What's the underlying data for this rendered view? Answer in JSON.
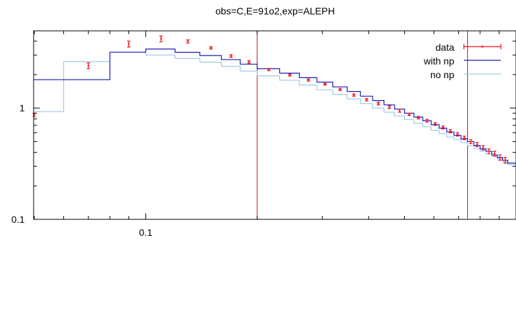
{
  "chart_data": {
    "type": "line",
    "title": "obs=C,E=91o2,exp=ALEPH",
    "xlabel": "",
    "ylabel": "",
    "x_scale": "log",
    "y_scale": "log",
    "xlim": [
      0.0498,
      1.0
    ],
    "ylim": [
      0.1,
      4.95
    ],
    "x_tick_labels": [
      {
        "value": 0.1,
        "label": "0.1"
      }
    ],
    "y_tick_labels": [
      {
        "value": 1,
        "label": "1"
      },
      {
        "value": 0.1,
        "label": "0.1"
      }
    ],
    "vertical_lines": [
      0.2,
      0.74
    ],
    "legend_position": "top-right",
    "colors": {
      "data": "#e8101a",
      "with_np": "#1818b8",
      "no_np": "#9ccce6",
      "vlines": "#b01818"
    },
    "series": [
      {
        "name": "data",
        "style": "points-with-errorbars",
        "points": [
          {
            "x": 0.05,
            "y": 0.87,
            "err": 0.03
          },
          {
            "x": 0.07,
            "y": 2.41,
            "err": 0.14
          },
          {
            "x": 0.09,
            "y": 3.77,
            "err": 0.23
          },
          {
            "x": 0.11,
            "y": 4.2,
            "err": 0.25
          },
          {
            "x": 0.13,
            "y": 3.98,
            "err": 0.13
          },
          {
            "x": 0.15,
            "y": 3.48,
            "err": 0.08
          },
          {
            "x": 0.17,
            "y": 2.94,
            "err": 0.08
          },
          {
            "x": 0.19,
            "y": 2.6,
            "err": 0.07
          },
          {
            "x": 0.215,
            "y": 2.22,
            "err": 0.05
          },
          {
            "x": 0.245,
            "y": 1.98,
            "err": 0.04
          },
          {
            "x": 0.275,
            "y": 1.79,
            "err": 0.04
          },
          {
            "x": 0.305,
            "y": 1.64,
            "err": 0.03
          },
          {
            "x": 0.335,
            "y": 1.47,
            "err": 0.03
          },
          {
            "x": 0.365,
            "y": 1.31,
            "err": 0.03
          },
          {
            "x": 0.395,
            "y": 1.19,
            "err": 0.03
          },
          {
            "x": 0.425,
            "y": 1.1,
            "err": 0.03
          },
          {
            "x": 0.455,
            "y": 1.02,
            "err": 0.03
          },
          {
            "x": 0.485,
            "y": 0.95,
            "err": 0.03
          },
          {
            "x": 0.515,
            "y": 0.88,
            "err": 0.02
          },
          {
            "x": 0.545,
            "y": 0.82,
            "err": 0.02
          },
          {
            "x": 0.575,
            "y": 0.77,
            "err": 0.02
          },
          {
            "x": 0.605,
            "y": 0.72,
            "err": 0.02
          },
          {
            "x": 0.635,
            "y": 0.67,
            "err": 0.02
          },
          {
            "x": 0.665,
            "y": 0.62,
            "err": 0.02
          },
          {
            "x": 0.695,
            "y": 0.58,
            "err": 0.02
          },
          {
            "x": 0.725,
            "y": 0.54,
            "err": 0.02
          },
          {
            "x": 0.755,
            "y": 0.5,
            "err": 0.02
          },
          {
            "x": 0.785,
            "y": 0.47,
            "err": 0.02
          },
          {
            "x": 0.815,
            "y": 0.44,
            "err": 0.02
          },
          {
            "x": 0.845,
            "y": 0.41,
            "err": 0.02
          },
          {
            "x": 0.875,
            "y": 0.39,
            "err": 0.02
          },
          {
            "x": 0.905,
            "y": 0.36,
            "err": 0.02
          },
          {
            "x": 0.935,
            "y": 0.34,
            "err": 0.02
          }
        ]
      },
      {
        "name": "with np",
        "style": "step",
        "edges": [
          0.0498,
          0.06,
          0.08,
          0.1,
          0.12,
          0.14,
          0.16,
          0.18,
          0.2,
          0.23,
          0.26,
          0.29,
          0.32,
          0.35,
          0.38,
          0.41,
          0.44,
          0.47,
          0.5,
          0.53,
          0.56,
          0.59,
          0.62,
          0.65,
          0.68,
          0.71,
          0.74,
          0.77,
          0.8,
          0.83,
          0.86,
          0.89,
          0.92,
          0.95,
          1.0
        ],
        "values": [
          1.8,
          1.8,
          3.18,
          3.4,
          3.17,
          2.97,
          2.73,
          2.48,
          2.26,
          2.06,
          1.88,
          1.71,
          1.55,
          1.41,
          1.28,
          1.17,
          1.07,
          0.98,
          0.9,
          0.83,
          0.77,
          0.71,
          0.66,
          0.61,
          0.57,
          0.53,
          0.5,
          0.46,
          0.43,
          0.41,
          0.38,
          0.36,
          0.34,
          0.32
        ]
      },
      {
        "name": "no np",
        "style": "step",
        "edges": [
          0.0498,
          0.06,
          0.08,
          0.1,
          0.12,
          0.14,
          0.16,
          0.18,
          0.2,
          0.23,
          0.26,
          0.29,
          0.32,
          0.35,
          0.38,
          0.41,
          0.44,
          0.47,
          0.5,
          0.53,
          0.56,
          0.59,
          0.62,
          0.65,
          0.68,
          0.71,
          0.74,
          0.77,
          0.8,
          0.83,
          0.86,
          0.89,
          0.92,
          0.95,
          1.0
        ],
        "values": [
          0.93,
          2.62,
          3.18,
          3.0,
          2.8,
          2.59,
          2.37,
          2.15,
          1.95,
          1.78,
          1.61,
          1.46,
          1.33,
          1.21,
          1.1,
          1.0,
          0.92,
          0.85,
          0.79,
          0.73,
          0.68,
          0.63,
          0.59,
          0.55,
          0.52,
          0.49,
          0.46,
          0.43,
          0.41,
          0.39,
          0.37,
          0.35,
          0.33,
          0.31
        ]
      }
    ]
  }
}
